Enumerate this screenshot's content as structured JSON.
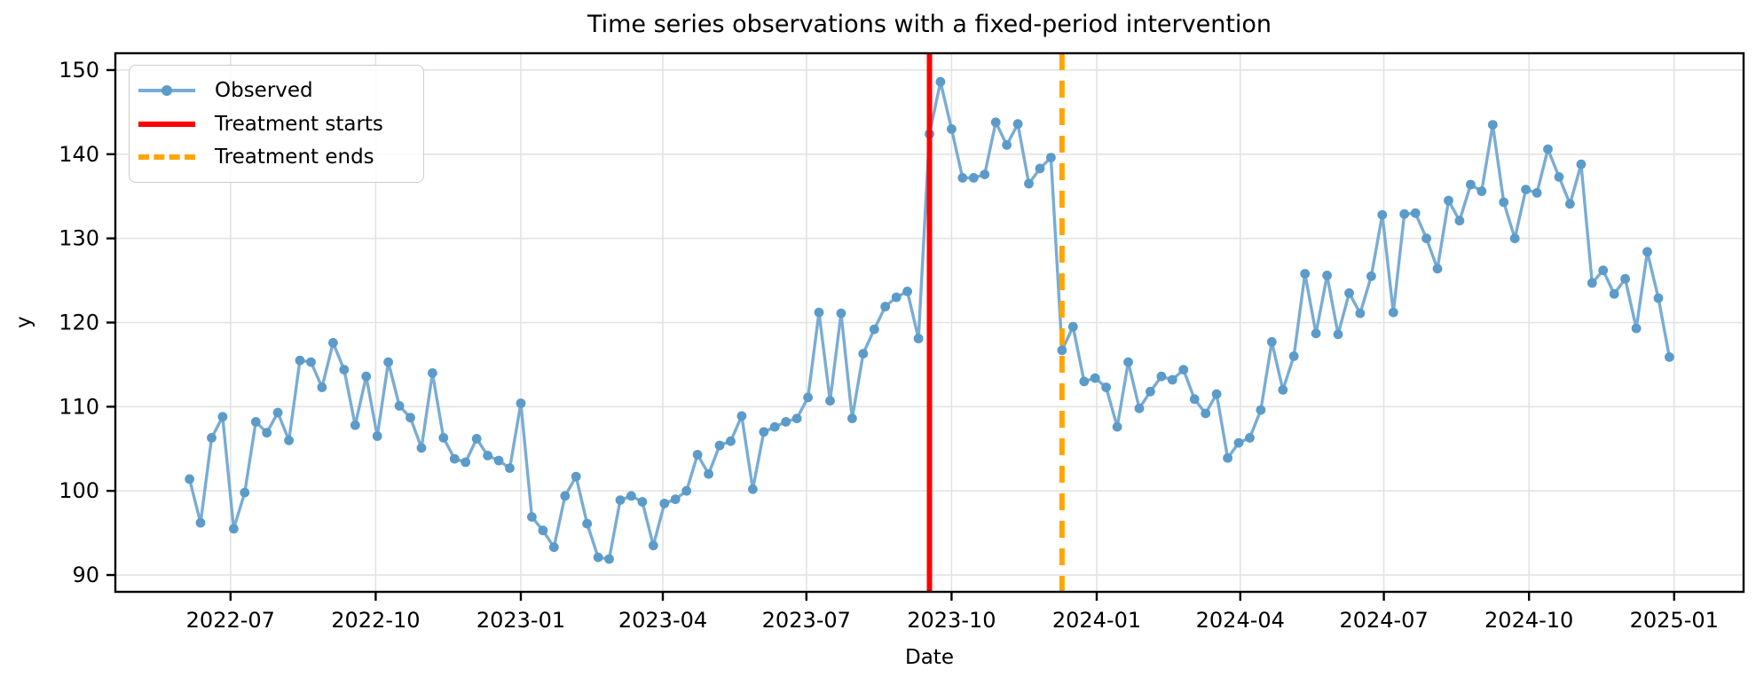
{
  "figure": {
    "title": "Time series observations with a fixed-period intervention",
    "xlabel": "Date",
    "ylabel": "y"
  },
  "legend": {
    "position": "upper left",
    "items": [
      {
        "label": "Observed",
        "swatch": "line-with-marker",
        "color": "#79acd4"
      },
      {
        "label": "Treatment starts",
        "swatch": "solid-line",
        "color": "#ff0000"
      },
      {
        "label": "Treatment ends",
        "swatch": "dashed-line",
        "color": "#ffa500"
      }
    ]
  },
  "colors": {
    "observed_line": "#79acd4",
    "observed_marker": "#5b9bc9",
    "treatment_start_line": "#ff0000",
    "treatment_end_line": "#ffa500",
    "gridline": "#e3e3e3",
    "spine": "#000000",
    "text": "#000000",
    "background": "#ffffff"
  },
  "chart_data": {
    "type": "line",
    "title": "Time series observations with a fixed-period intervention",
    "xlabel": "Date",
    "ylabel": "y",
    "grid": true,
    "legend_position": "upper left",
    "x_start_date": "2022-06-05",
    "x_freq_days": 7,
    "xlim": [
      "2022-04-19",
      "2025-02-14"
    ],
    "ylim": [
      88,
      152
    ],
    "yticks": [
      90,
      100,
      110,
      120,
      130,
      140,
      150
    ],
    "xticks": [
      {
        "date": "2022-07-01",
        "label": "2022-07"
      },
      {
        "date": "2022-10-01",
        "label": "2022-10"
      },
      {
        "date": "2023-01-01",
        "label": "2023-01"
      },
      {
        "date": "2023-04-01",
        "label": "2023-04"
      },
      {
        "date": "2023-07-01",
        "label": "2023-07"
      },
      {
        "date": "2023-10-01",
        "label": "2023-10"
      },
      {
        "date": "2024-01-01",
        "label": "2024-01"
      },
      {
        "date": "2024-04-01",
        "label": "2024-04"
      },
      {
        "date": "2024-07-01",
        "label": "2024-07"
      },
      {
        "date": "2024-10-01",
        "label": "2024-10"
      },
      {
        "date": "2025-01-01",
        "label": "2025-01"
      }
    ],
    "vlines": [
      {
        "name": "Treatment starts",
        "date": "2023-09-17",
        "color": "#ff0000",
        "style": "solid"
      },
      {
        "name": "Treatment ends",
        "date": "2023-12-10",
        "color": "#ffa500",
        "style": "dashed"
      }
    ],
    "series": [
      {
        "name": "Observed",
        "marker": "o",
        "values": [
          101.4,
          96.2,
          106.3,
          108.8,
          95.5,
          99.8,
          108.2,
          106.9,
          109.3,
          106.0,
          115.5,
          115.3,
          112.3,
          117.6,
          114.4,
          107.8,
          113.6,
          106.5,
          115.3,
          110.1,
          108.7,
          105.1,
          114.0,
          106.3,
          103.8,
          103.4,
          106.2,
          104.2,
          103.6,
          102.7,
          110.4,
          96.9,
          95.3,
          93.3,
          99.4,
          101.7,
          96.1,
          92.1,
          91.9,
          98.9,
          99.4,
          98.7,
          93.5,
          98.5,
          99.0,
          100.0,
          104.3,
          102.0,
          105.4,
          105.9,
          108.9,
          100.2,
          107.0,
          107.6,
          108.2,
          108.6,
          111.1,
          121.2,
          110.7,
          121.1,
          108.6,
          116.3,
          119.2,
          121.9,
          123.0,
          123.7,
          118.1,
          142.4,
          148.6,
          143.0,
          137.2,
          137.2,
          137.6,
          143.8,
          141.1,
          143.6,
          136.5,
          138.3,
          139.6,
          116.7,
          119.5,
          113.0,
          113.4,
          112.3,
          107.6,
          115.3,
          109.8,
          111.8,
          113.6,
          113.2,
          114.4,
          110.9,
          109.2,
          111.5,
          103.9,
          105.7,
          106.3,
          109.6,
          117.7,
          112.0,
          116.0,
          125.8,
          118.7,
          125.6,
          118.6,
          123.5,
          121.1,
          125.5,
          132.8,
          121.2,
          132.9,
          133.0,
          130.0,
          126.4,
          134.5,
          132.1,
          136.4,
          135.6,
          143.5,
          134.3,
          130.0,
          135.8,
          135.4,
          140.6,
          137.3,
          134.1,
          138.8,
          124.7,
          126.2,
          123.4,
          125.2,
          119.3,
          128.4,
          122.9,
          115.9
        ]
      }
    ]
  }
}
